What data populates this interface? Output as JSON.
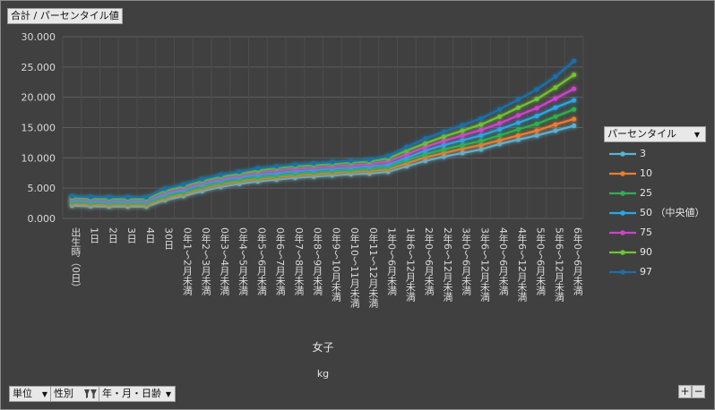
{
  "title_button": {
    "label": "合計 / パーセンタイル値"
  },
  "legend": {
    "header": "パーセンタイル",
    "items": [
      {
        "label": "3",
        "color": "#58b3d6"
      },
      {
        "label": "10",
        "color": "#ed7d31"
      },
      {
        "label": "25",
        "color": "#2fb04e"
      },
      {
        "label": "50 （中央値）",
        "color": "#2aa7e6"
      },
      {
        "label": "75",
        "color": "#cc44cc"
      },
      {
        "label": "90",
        "color": "#70c431"
      },
      {
        "label": "97",
        "color": "#1d6fa8"
      }
    ]
  },
  "bottom_fields": [
    {
      "label": "単位",
      "icon": "dropdown-icon"
    },
    {
      "label": "性別",
      "icon": "filter-icon"
    },
    {
      "label": "年・月・日齢",
      "icon": "dropdown-icon"
    }
  ],
  "zoom": {
    "plus": "+",
    "minus": "−"
  },
  "chart_data": {
    "type": "line",
    "xlabel": "女子",
    "xsublabel": "kg",
    "ylim": [
      0,
      30000
    ],
    "yticks": [
      "0.000",
      "5.000",
      "10.000",
      "15.000",
      "20.000",
      "25.000",
      "30.000"
    ],
    "grid": true,
    "legend_position": "right",
    "categories": [
      "出生時（0日）",
      "1日",
      "2日",
      "3日",
      "4日",
      "30日",
      "0年1～2月未満",
      "0年2～3月未満",
      "0年3～4月未満",
      "0年4～5月未満",
      "0年5～6月未満",
      "0年6～7月未満",
      "0年7～8月未満",
      "0年8～9月未満",
      "0年9～10月未満",
      "0年10～11月未満",
      "0年11～12月未満",
      "1年0～6月未満",
      "1年6～12月未満",
      "2年0～6月未満",
      "2年6～12月未満",
      "3年0～6月未満",
      "3年6～12月未満",
      "4年0～6月未満",
      "4年6～12月未満",
      "5年0～6月未満",
      "5年6～12月未満",
      "6年0～6月未満"
    ],
    "series": [
      {
        "name": "3",
        "values": [
          2100,
          2000,
          1950,
          1950,
          1950,
          3000,
          3700,
          4500,
          5200,
          5700,
          6100,
          6400,
          6700,
          6900,
          7100,
          7300,
          7400,
          7700,
          8600,
          9500,
          10200,
          10800,
          11400,
          12300,
          13000,
          13700,
          14500,
          15300
        ]
      },
      {
        "name": "10",
        "values": [
          2400,
          2250,
          2200,
          2200,
          2200,
          3300,
          4000,
          4900,
          5600,
          6100,
          6500,
          6800,
          7100,
          7300,
          7500,
          7700,
          7800,
          8100,
          9100,
          10100,
          10800,
          11500,
          12100,
          12900,
          13700,
          14500,
          15500,
          16400
        ]
      },
      {
        "name": "25",
        "values": [
          2700,
          2550,
          2500,
          2500,
          2500,
          3600,
          4300,
          5200,
          5900,
          6400,
          6800,
          7100,
          7400,
          7600,
          7800,
          8000,
          8200,
          8500,
          9600,
          10600,
          11400,
          12100,
          12800,
          13700,
          14700,
          15600,
          16800,
          18000
        ]
      },
      {
        "name": "50 （中央値）",
        "values": [
          3000,
          2850,
          2800,
          2800,
          2800,
          4000,
          4700,
          5600,
          6300,
          6800,
          7200,
          7500,
          7800,
          8000,
          8200,
          8400,
          8600,
          8900,
          10000,
          11200,
          12100,
          12900,
          13700,
          14700,
          15800,
          16900,
          18300,
          19500
        ]
      },
      {
        "name": "75",
        "values": [
          3200,
          3100,
          3050,
          3050,
          3050,
          4300,
          5000,
          5900,
          6600,
          7100,
          7600,
          7900,
          8200,
          8400,
          8600,
          8800,
          9000,
          9400,
          10600,
          11800,
          12800,
          13700,
          14600,
          15700,
          17000,
          18200,
          19800,
          21400
        ]
      },
      {
        "name": "90",
        "values": [
          3400,
          3300,
          3250,
          3250,
          3250,
          4600,
          5300,
          6200,
          6900,
          7400,
          7900,
          8300,
          8600,
          8800,
          9000,
          9200,
          9400,
          9900,
          11200,
          12400,
          13500,
          14500,
          15500,
          16800,
          18300,
          19700,
          21600,
          23700
        ]
      },
      {
        "name": "97",
        "values": [
          3650,
          3550,
          3500,
          3500,
          3500,
          4900,
          5600,
          6500,
          7200,
          7700,
          8300,
          8600,
          8900,
          9100,
          9300,
          9500,
          9700,
          10300,
          11800,
          13200,
          14300,
          15400,
          16500,
          18000,
          19600,
          21300,
          23400,
          26000
        ]
      }
    ]
  }
}
